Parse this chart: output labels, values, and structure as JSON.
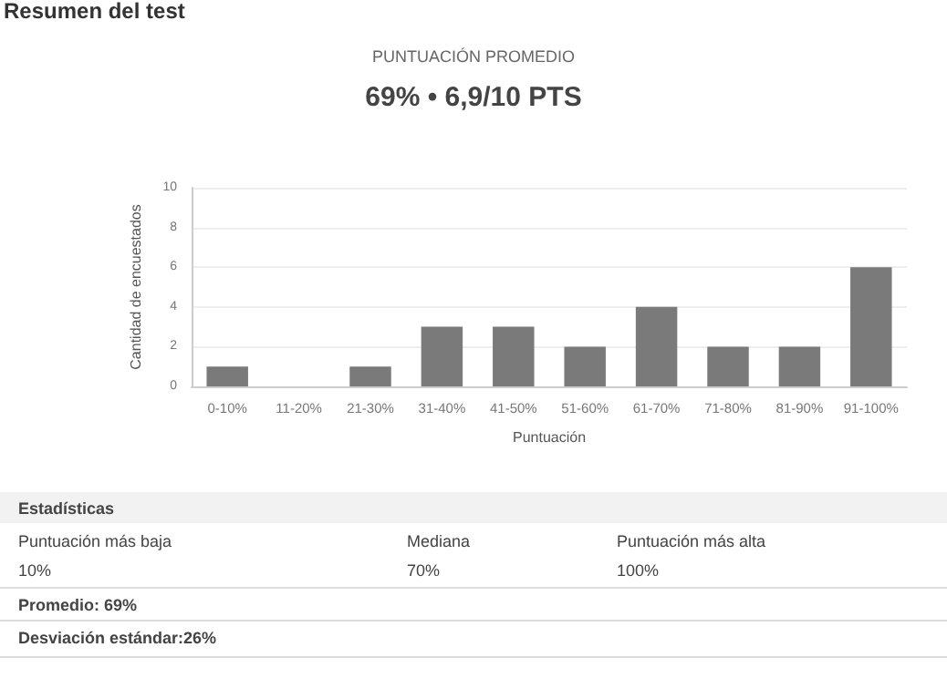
{
  "chart_data": {
    "type": "bar",
    "title": "Resumen del test",
    "subtitle": "PUNTUACIÓN PROMEDIO",
    "xlabel": "Puntuación",
    "ylabel": "Cantidad de encuestados",
    "categories": [
      "0-10%",
      "11-20%",
      "21-30%",
      "31-40%",
      "41-50%",
      "51-60%",
      "61-70%",
      "71-80%",
      "81-90%",
      "91-100%"
    ],
    "values": [
      1,
      0,
      1,
      3,
      3,
      2,
      4,
      2,
      2,
      6
    ],
    "color": "#7a7a7a",
    "ylim": [
      0,
      10
    ],
    "yticks": [
      0,
      2,
      4,
      6,
      8,
      10
    ],
    "grid": "y",
    "annotations": [
      "69% • 6,9/10 PTS",
      "Estadísticas",
      "Puntuación más baja",
      "10%",
      "Mediana",
      "70%",
      "Puntuación más alta",
      "100%",
      "Promedio: 69%",
      "Desviación estándar:26%"
    ]
  }
}
